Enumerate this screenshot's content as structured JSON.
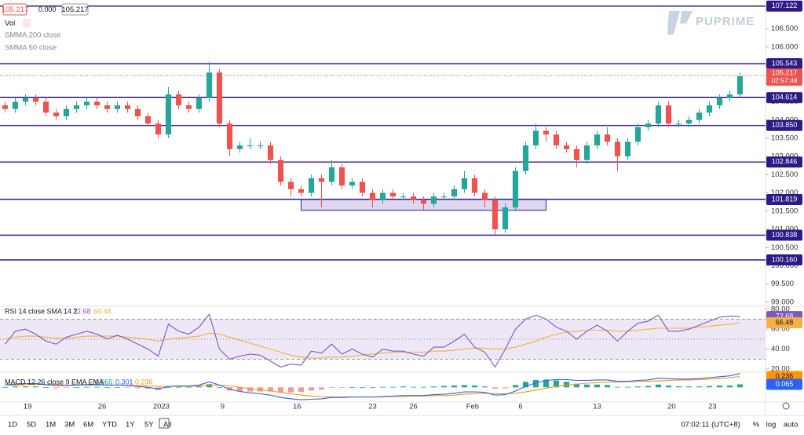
{
  "chart_data": {
    "type": "candlestick",
    "quote": {
      "bid": 105.217,
      "spread": "0.000",
      "ask": 105.217
    },
    "indicators": [
      "Vol",
      "SMMA 200 close",
      "SMMA 50 close"
    ],
    "watermark": "PUPRIME",
    "xlim": [
      -0.5,
      74.5
    ],
    "xticks": [
      {
        "value": 2.2,
        "label": "19"
      },
      {
        "value": 9.5,
        "label": "26"
      },
      {
        "value": 15.3,
        "label": "2023"
      },
      {
        "value": 21.3,
        "label": "9"
      },
      {
        "value": 28.6,
        "label": "16"
      },
      {
        "value": 36,
        "label": "23"
      },
      {
        "value": 40,
        "label": "26"
      },
      {
        "value": 45.8,
        "label": "Feb"
      },
      {
        "value": 50.5,
        "label": "6"
      },
      {
        "value": 58,
        "label": "13"
      },
      {
        "value": 65.3,
        "label": "20"
      },
      {
        "value": 69.3,
        "label": "23"
      }
    ],
    "ylim": [
      98.89,
      107.29
    ],
    "yticks": [
      {
        "value": 99,
        "label": "99.000"
      },
      {
        "value": 99.5,
        "label": "99.500"
      },
      {
        "value": 100,
        "label": "100.000"
      },
      {
        "value": 100.5,
        "label": "100.500"
      },
      {
        "value": 101,
        "label": "101.000"
      },
      {
        "value": 101.5,
        "label": "101.500"
      },
      {
        "value": 102,
        "label": "102.000"
      },
      {
        "value": 102.5,
        "label": "102.500"
      },
      {
        "value": 103,
        "label": "103.000"
      },
      {
        "value": 103.5,
        "label": "103.500"
      },
      {
        "value": 104,
        "label": "104.000"
      },
      {
        "value": 104.5,
        "label": "104.500"
      },
      {
        "value": 105,
        "label": "105.000"
      },
      {
        "value": 105.5,
        "label": "105.500"
      },
      {
        "value": 106,
        "label": "106.000"
      },
      {
        "value": 106.5,
        "label": "106.500"
      }
    ],
    "up_color": "#26a69a",
    "down_color": "#ef5350",
    "open": [
      104.4,
      104.3,
      104.5,
      104.6,
      104.5,
      104.2,
      104.1,
      104.3,
      104.4,
      104.5,
      104.4,
      104.3,
      104.4,
      104.3,
      104.1,
      103.9,
      103.6,
      104.7,
      104.4,
      104.3,
      104.6,
      105.3,
      103.9,
      103.2,
      103.3,
      103.3,
      103.3,
      102.9,
      102.3,
      102.1,
      102.0,
      102.4,
      102.3,
      102.7,
      102.2,
      102.3,
      102.0,
      101.8,
      102.0,
      101.9,
      101.9,
      101.8,
      101.7,
      101.9,
      101.9,
      102.1,
      102.4,
      102.0,
      101.8,
      101.0,
      101.6,
      102.6,
      103.3,
      103.7,
      103.6,
      103.3,
      103.2,
      102.9,
      103.3,
      103.6,
      103.4,
      103.0,
      103.4,
      103.8,
      103.9,
      104.4,
      103.9,
      103.9,
      104.0,
      104.2,
      104.4,
      104.6,
      104.7
    ],
    "high": [
      104.5,
      104.6,
      104.7,
      104.7,
      104.6,
      104.3,
      104.4,
      104.5,
      104.6,
      104.6,
      104.5,
      104.5,
      104.5,
      104.4,
      104.2,
      104.0,
      104.9,
      104.8,
      104.5,
      104.7,
      105.6,
      105.4,
      104.0,
      103.4,
      103.5,
      103.4,
      103.4,
      103.0,
      102.4,
      102.2,
      102.5,
      102.5,
      102.9,
      102.8,
      102.4,
      102.4,
      102.1,
      102.1,
      102.1,
      102.0,
      102.0,
      101.9,
      102.0,
      102.0,
      102.2,
      102.6,
      102.5,
      102.1,
      101.9,
      101.7,
      102.7,
      103.4,
      103.9,
      103.8,
      103.7,
      103.4,
      103.3,
      103.4,
      103.7,
      103.8,
      103.5,
      103.5,
      103.9,
      104.0,
      104.5,
      104.5,
      104.0,
      104.1,
      104.3,
      104.5,
      104.7,
      104.8,
      105.3
    ],
    "low": [
      104.2,
      104.2,
      104.4,
      104.4,
      104.1,
      104.0,
      104.0,
      104.2,
      104.3,
      104.3,
      104.2,
      104.2,
      104.2,
      104.0,
      103.8,
      103.5,
      103.5,
      104.3,
      104.2,
      104.2,
      104.5,
      103.8,
      103.0,
      103.1,
      103.2,
      103.2,
      102.8,
      102.2,
      101.9,
      101.9,
      101.9,
      101.6,
      102.2,
      102.1,
      102.1,
      101.9,
      101.6,
      101.7,
      101.8,
      101.8,
      101.7,
      101.5,
      101.6,
      101.8,
      101.8,
      102.0,
      101.9,
      101.6,
      100.85,
      100.9,
      101.5,
      102.5,
      103.2,
      103.4,
      103.2,
      103.1,
      102.7,
      102.8,
      103.2,
      103.3,
      102.6,
      102.9,
      103.3,
      103.7,
      103.8,
      103.8,
      103.8,
      103.8,
      103.9,
      104.1,
      104.3,
      104.5,
      104.6
    ],
    "close": [
      104.3,
      104.5,
      104.6,
      104.5,
      104.2,
      104.1,
      104.3,
      104.4,
      104.5,
      104.4,
      104.3,
      104.4,
      104.3,
      104.1,
      103.9,
      103.6,
      104.7,
      104.4,
      104.3,
      104.6,
      105.3,
      103.9,
      103.2,
      103.3,
      103.3,
      103.3,
      102.9,
      102.3,
      102.1,
      102.0,
      102.4,
      102.3,
      102.7,
      102.2,
      102.3,
      102.0,
      101.8,
      102.0,
      101.9,
      101.9,
      101.8,
      101.7,
      101.9,
      101.9,
      102.1,
      102.4,
      102.0,
      101.8,
      101.0,
      101.6,
      102.6,
      103.3,
      103.7,
      103.6,
      103.3,
      103.2,
      102.9,
      103.3,
      103.6,
      103.4,
      103.0,
      103.4,
      103.8,
      103.9,
      104.4,
      103.9,
      103.9,
      104.0,
      104.2,
      104.4,
      104.6,
      104.7,
      105.2
    ],
    "level_color": "#2e1a87",
    "levels": [
      107.122,
      105.543,
      104.614,
      {
        "value": 103.85,
        "label": "103.850"
      },
      102.846,
      101.819,
      100.838,
      {
        "value": 100.16,
        "label": "100.160"
      }
    ],
    "zone": {
      "x0": 29,
      "x1": 53,
      "y0": 101.52,
      "y1": 101.819,
      "color": "#d1c4e9"
    },
    "last_price": {
      "value": 105.217,
      "label": "105.217",
      "countdown": "02:57:48",
      "color": "#ef5350"
    },
    "rsi": {
      "title": "RSI 14 close SMA 14 2",
      "ylim": [
        16.9,
        83
      ],
      "yticks": [
        {
          "value": 20,
          "label": "20.00"
        },
        {
          "value": 40,
          "label": "40.00"
        },
        {
          "value": 60,
          "label": "60.00"
        },
        {
          "value": 80,
          "label": "80.00"
        }
      ],
      "bands": [
        70,
        50,
        30
      ],
      "band_color": "#ede7f6",
      "rsi_color": "#7e57c2",
      "rsi": [
        45,
        58,
        60,
        55,
        48,
        45,
        52,
        55,
        58,
        55,
        50,
        54,
        50,
        45,
        40,
        33,
        65,
        58,
        55,
        62,
        75,
        40,
        30,
        33,
        35,
        34,
        28,
        22,
        25,
        24,
        38,
        36,
        45,
        35,
        40,
        35,
        32,
        40,
        38,
        38,
        35,
        33,
        42,
        42,
        48,
        55,
        42,
        37,
        22,
        40,
        60,
        70,
        74,
        70,
        62,
        58,
        50,
        58,
        64,
        58,
        48,
        58,
        66,
        68,
        74,
        58,
        58,
        60,
        64,
        68,
        72,
        73,
        72.68
      ],
      "sma_color": "#f5b041",
      "sma": [
        50,
        52,
        53,
        53,
        52,
        51,
        51,
        52,
        53,
        53,
        53,
        53,
        52,
        51,
        50,
        48,
        50,
        51,
        52,
        53,
        56,
        55,
        52,
        49,
        46,
        43,
        40,
        37,
        34,
        32,
        31,
        31,
        32,
        32,
        33,
        34,
        35,
        36,
        37,
        37,
        37,
        37,
        38,
        38,
        39,
        40,
        41,
        41,
        40,
        40,
        42,
        45,
        48,
        52,
        55,
        57,
        58,
        59,
        59,
        59,
        58,
        58,
        59,
        60,
        61,
        61,
        61,
        61,
        62,
        63,
        64,
        65,
        66.48
      ]
    },
    "macd": {
      "title": "MACD 12 26 close 9 EMA EMA",
      "ylim": [
        -0.32,
        0.33
      ],
      "hist_up_color": "#26a69a",
      "hist_down_color": "#ef9a9a",
      "hist": [
        0,
        0.02,
        0.02,
        0.02,
        0,
        -0.02,
        -0.01,
        0,
        0.01,
        0.01,
        0,
        0,
        -0.01,
        -0.02,
        -0.03,
        -0.06,
        0,
        0.01,
        0.01,
        0.02,
        0.07,
        0,
        -0.07,
        -0.09,
        -0.09,
        -0.09,
        -0.09,
        -0.11,
        -0.11,
        -0.1,
        -0.07,
        -0.05,
        -0.01,
        -0.01,
        0,
        0,
        0,
        0.01,
        0.01,
        0.02,
        0.01,
        0.01,
        0.02,
        0.03,
        0.04,
        0.05,
        0.04,
        0.02,
        -0.03,
        -0.02,
        0.05,
        0.12,
        0.16,
        0.17,
        0.15,
        0.12,
        0.08,
        0.06,
        0.06,
        0.05,
        0.01,
        0.01,
        0.02,
        0.03,
        0.06,
        0.04,
        0.02,
        0.02,
        0.02,
        0.03,
        0.04,
        0.04,
        0.065
      ],
      "macd_color": "#2962ff",
      "macd": [
        0.05,
        0.07,
        0.08,
        0.08,
        0.06,
        0.04,
        0.04,
        0.05,
        0.06,
        0.06,
        0.05,
        0.05,
        0.04,
        0.02,
        0,
        -0.04,
        0.02,
        0.03,
        0.03,
        0.05,
        0.12,
        0.05,
        -0.04,
        -0.09,
        -0.12,
        -0.14,
        -0.17,
        -0.22,
        -0.25,
        -0.27,
        -0.26,
        -0.25,
        -0.22,
        -0.22,
        -0.21,
        -0.21,
        -0.21,
        -0.2,
        -0.19,
        -0.18,
        -0.18,
        -0.18,
        -0.16,
        -0.15,
        -0.13,
        -0.1,
        -0.1,
        -0.11,
        -0.17,
        -0.16,
        -0.08,
        0.02,
        0.1,
        0.15,
        0.17,
        0.17,
        0.15,
        0.15,
        0.16,
        0.16,
        0.13,
        0.13,
        0.15,
        0.16,
        0.2,
        0.19,
        0.18,
        0.18,
        0.19,
        0.21,
        0.23,
        0.25,
        0.301
      ],
      "signal_color": "#ff9800",
      "signal": [
        0.05,
        0.05,
        0.06,
        0.06,
        0.06,
        0.06,
        0.05,
        0.05,
        0.05,
        0.05,
        0.05,
        0.05,
        0.05,
        0.04,
        0.03,
        0.02,
        0.02,
        0.02,
        0.02,
        0.03,
        0.05,
        0.05,
        0.03,
        0,
        -0.03,
        -0.05,
        -0.08,
        -0.11,
        -0.14,
        -0.17,
        -0.19,
        -0.2,
        -0.21,
        -0.21,
        -0.21,
        -0.21,
        -0.21,
        -0.21,
        -0.2,
        -0.2,
        -0.19,
        -0.19,
        -0.18,
        -0.18,
        -0.17,
        -0.15,
        -0.14,
        -0.13,
        -0.14,
        -0.14,
        -0.13,
        -0.1,
        -0.06,
        -0.02,
        0.02,
        0.05,
        0.07,
        0.09,
        0.1,
        0.11,
        0.12,
        0.12,
        0.13,
        0.13,
        0.14,
        0.15,
        0.16,
        0.16,
        0.17,
        0.18,
        0.19,
        0.21,
        0.236
      ]
    },
    "toolbar": {
      "ranges": [
        "1D",
        "5D",
        "1M",
        "3M",
        "6M",
        "YTD",
        "1Y",
        "5Y",
        "All"
      ],
      "time": "07:02:11 (UTC+8)",
      "scale_buttons": [
        "%",
        "log",
        "auto"
      ]
    }
  }
}
